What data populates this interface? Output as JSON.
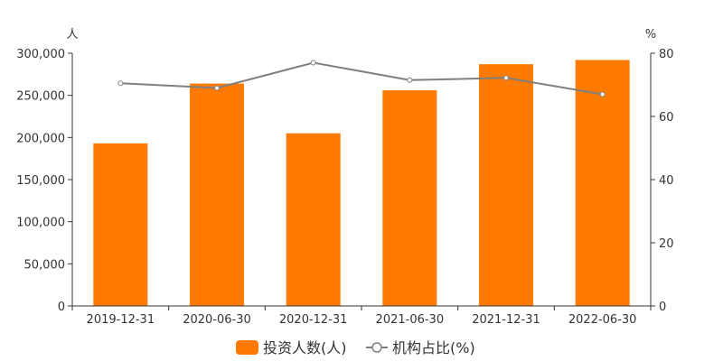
{
  "colors": {
    "bar": "#ff7a00",
    "line": "#7f7f7f",
    "axis": "#333333",
    "point_fill": "#ffffff"
  },
  "chart_data": {
    "type": "bar",
    "categories": [
      "2019-12-31",
      "2020-06-30",
      "2020-12-31",
      "2021-06-30",
      "2021-12-31",
      "2022-06-30"
    ],
    "series": [
      {
        "name": "投资人数(人)",
        "type": "bar",
        "axis": "left",
        "values": [
          193000,
          264000,
          205000,
          256000,
          287000,
          292000
        ]
      },
      {
        "name": "机构占比(%)",
        "type": "line",
        "axis": "right",
        "values": [
          70.5,
          69.0,
          77.0,
          71.5,
          72.2,
          67.0
        ]
      }
    ],
    "y_left": {
      "unit_label": "人",
      "ylim": [
        0,
        300000
      ],
      "ticks": [
        "0",
        "50,000",
        "100,000",
        "150,000",
        "200,000",
        "250,000",
        "300,000"
      ]
    },
    "y_right": {
      "unit_label": "%",
      "ylim": [
        0,
        80
      ],
      "ticks": [
        "0",
        "20",
        "40",
        "60",
        "80"
      ]
    },
    "grid": false,
    "legend": "bottom-center"
  }
}
